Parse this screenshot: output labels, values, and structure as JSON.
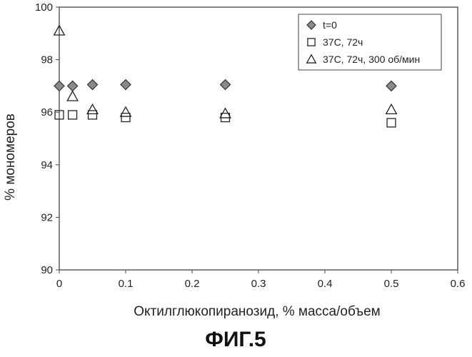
{
  "figure_caption": "ФИГ.5",
  "chart_data": {
    "type": "scatter",
    "xlabel": "Октилглюкопиранозид, % масса/объем",
    "ylabel": "% мономеров",
    "xlim": [
      0,
      0.6
    ],
    "ylim": [
      90,
      100
    ],
    "x_ticks": [
      "0",
      "0.1",
      "0.2",
      "0.3",
      "0.4",
      "0.5",
      "0.6"
    ],
    "y_ticks": [
      "90",
      "92",
      "94",
      "96",
      "98",
      "100"
    ],
    "grid": false,
    "legend_position": "top-right",
    "series": [
      {
        "name": "t=0",
        "marker": "diamond",
        "color": "#8a8a8a",
        "points": [
          [
            0,
            97.0
          ],
          [
            0.02,
            97.0
          ],
          [
            0.05,
            97.05
          ],
          [
            0.1,
            97.05
          ],
          [
            0.25,
            97.05
          ],
          [
            0.5,
            97.0
          ]
        ]
      },
      {
        "name": "37С, 72ч",
        "marker": "square",
        "color": "#222222",
        "points": [
          [
            0,
            95.9
          ],
          [
            0.02,
            95.9
          ],
          [
            0.05,
            95.9
          ],
          [
            0.1,
            95.8
          ],
          [
            0.25,
            95.8
          ],
          [
            0.5,
            95.6
          ]
        ]
      },
      {
        "name": "37С, 72ч, 300 об/мин",
        "marker": "triangle",
        "color": "#222222",
        "points": [
          [
            0,
            99.1
          ],
          [
            0.02,
            96.6
          ],
          [
            0.05,
            96.1
          ],
          [
            0.1,
            96.0
          ],
          [
            0.25,
            95.95
          ],
          [
            0.5,
            96.1
          ]
        ]
      }
    ]
  }
}
